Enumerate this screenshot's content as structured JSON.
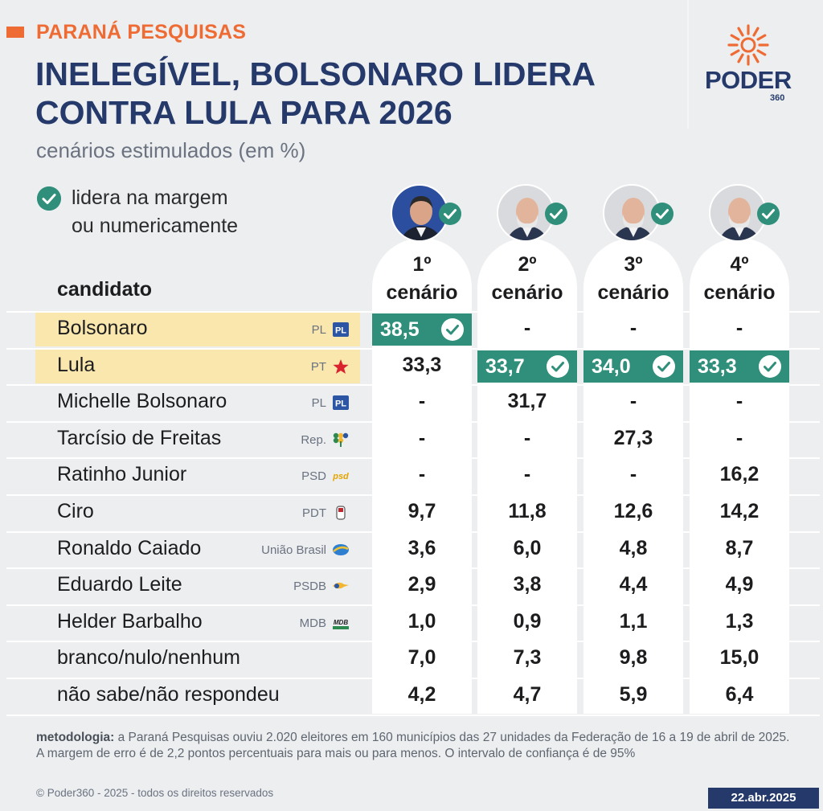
{
  "header": {
    "kicker": "PARANÁ PESQUISAS",
    "headline_line1": "INELEGÍVEL, BOLSONARO LIDERA",
    "headline_line2": "CONTRA LULA PARA 2026",
    "subtitle": "cenários estimulados (em %)",
    "logo_word": "PODER",
    "logo_number": "360"
  },
  "legend": {
    "line1": "lidera na margem",
    "line2": "ou numericamente"
  },
  "colors": {
    "accent": "#ef6b34",
    "navy": "#253a6b",
    "lead_green": "#2f8f7a",
    "highlight_row": "#f9e7ae"
  },
  "chart_data": {
    "type": "table",
    "title": "INELEGÍVEL, BOLSONARO LIDERA CONTRA LULA PARA 2026",
    "subtitle": "cenários estimulados (em %)",
    "row_header": "candidato",
    "columns": [
      {
        "ordinal": "1º",
        "label": "cenário",
        "leader": "Bolsonaro"
      },
      {
        "ordinal": "2º",
        "label": "cenário",
        "leader": "Lula"
      },
      {
        "ordinal": "3º",
        "label": "cenário",
        "leader": "Lula"
      },
      {
        "ordinal": "4º",
        "label": "cenário",
        "leader": "Lula"
      }
    ],
    "rows": [
      {
        "name": "Bolsonaro",
        "party": "PL",
        "badge": "pl-badge-icon",
        "highlight": true,
        "values": [
          "38,5",
          "-",
          "-",
          "-"
        ],
        "lead": [
          true,
          false,
          false,
          false
        ]
      },
      {
        "name": "Lula",
        "party": "PT",
        "badge": "pt-star-icon",
        "highlight": true,
        "values": [
          "33,3",
          "33,7",
          "34,0",
          "33,3"
        ],
        "lead": [
          false,
          true,
          true,
          true
        ]
      },
      {
        "name": "Michelle Bolsonaro",
        "party": "PL",
        "badge": "pl-badge-icon",
        "highlight": false,
        "values": [
          "-",
          "31,7",
          "-",
          "-"
        ],
        "lead": [
          false,
          false,
          false,
          false
        ]
      },
      {
        "name": "Tarcísio de Freitas",
        "party": "Rep.",
        "badge": "republicanos-tree-icon",
        "highlight": false,
        "values": [
          "-",
          "-",
          "27,3",
          "-"
        ],
        "lead": [
          false,
          false,
          false,
          false
        ]
      },
      {
        "name": "Ratinho Junior",
        "party": "PSD",
        "badge": "psd-logo-icon",
        "highlight": false,
        "values": [
          "-",
          "-",
          "-",
          "16,2"
        ],
        "lead": [
          false,
          false,
          false,
          false
        ]
      },
      {
        "name": "Ciro",
        "party": "PDT",
        "badge": "pdt-hand-icon",
        "highlight": false,
        "values": [
          "9,7",
          "11,8",
          "12,6",
          "14,2"
        ],
        "lead": [
          false,
          false,
          false,
          false
        ]
      },
      {
        "name": "Ronaldo Caiado",
        "party": "União Brasil",
        "badge": "uniao-brasil-icon",
        "highlight": false,
        "values": [
          "3,6",
          "6,0",
          "4,8",
          "8,7"
        ],
        "lead": [
          false,
          false,
          false,
          false
        ]
      },
      {
        "name": "Eduardo Leite",
        "party": "PSDB",
        "badge": "psdb-toucan-icon",
        "highlight": false,
        "values": [
          "2,9",
          "3,8",
          "4,4",
          "4,9"
        ],
        "lead": [
          false,
          false,
          false,
          false
        ]
      },
      {
        "name": "Helder Barbalho",
        "party": "MDB",
        "badge": "mdb-logo-icon",
        "highlight": false,
        "values": [
          "1,0",
          "0,9",
          "1,1",
          "1,3"
        ],
        "lead": [
          false,
          false,
          false,
          false
        ]
      },
      {
        "name": "branco/nulo/nenhum",
        "party": "",
        "badge": "",
        "highlight": false,
        "values": [
          "7,0",
          "7,3",
          "9,8",
          "15,0"
        ],
        "lead": [
          false,
          false,
          false,
          false
        ]
      },
      {
        "name": "não sabe/não respondeu",
        "party": "",
        "badge": "",
        "highlight": false,
        "values": [
          "4,2",
          "4,7",
          "5,9",
          "6,4"
        ],
        "lead": [
          false,
          false,
          false,
          false
        ]
      }
    ]
  },
  "footer": {
    "methodology_label": "metodologia:",
    "methodology_text": " a Paraná Pesquisas ouviu 2.020 eleitores em 160 municípios das 27 unidades da Federação de 16 a 19 de abril de 2025. A margem de erro é de 2,2 pontos percentuais para mais ou para menos. O intervalo de confiança é de 95%",
    "copyright": "© Poder360 - 2025 - todos os direitos reservados",
    "date": "22.abr.2025"
  }
}
